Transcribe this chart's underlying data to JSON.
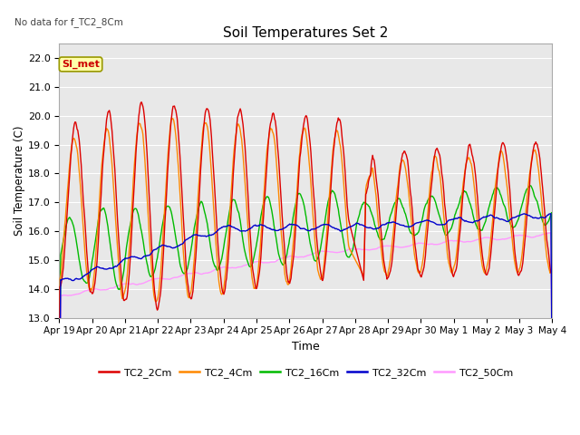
{
  "title": "Soil Temperatures Set 2",
  "subtitle": "No data for f_TC2_8Cm",
  "xlabel": "Time",
  "ylabel": "Soil Temperature (C)",
  "ylim": [
    13.0,
    22.5
  ],
  "yticks": [
    13.0,
    14.0,
    15.0,
    16.0,
    17.0,
    18.0,
    19.0,
    20.0,
    21.0,
    22.0
  ],
  "x_labels": [
    "Apr 19",
    "Apr 20",
    "Apr 21",
    "Apr 22",
    "Apr 23",
    "Apr 24",
    "Apr 25",
    "Apr 26",
    "Apr 27",
    "Apr 28",
    "Apr 29",
    "Apr 30",
    "May 1",
    "May 2",
    "May 3",
    "May 4"
  ],
  "legend_labels": [
    "TC2_2Cm",
    "TC2_4Cm",
    "TC2_16Cm",
    "TC2_32Cm",
    "TC2_50Cm"
  ],
  "line_colors": [
    "#dd0000",
    "#ff8800",
    "#00bb00",
    "#0000cc",
    "#ff99ff"
  ],
  "annotation_text": "SI_met",
  "annotation_color": "#cc0000",
  "annotation_bg": "#ffffaa",
  "plot_bg": "#e8e8e8",
  "grid_color": "#ffffff",
  "figsize": [
    6.4,
    4.8
  ],
  "dpi": 100
}
